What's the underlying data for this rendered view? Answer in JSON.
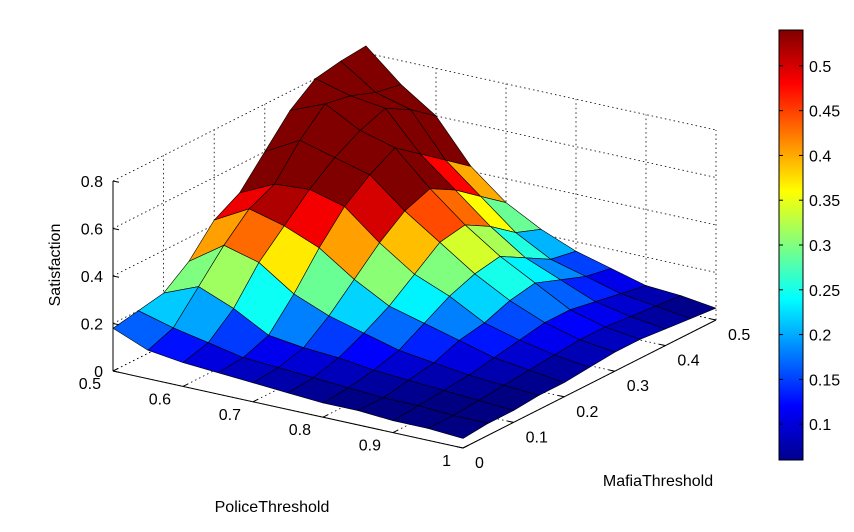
{
  "chart_data": {
    "type": "surface",
    "xlabel": "PoliceThreshold",
    "ylabel": "MafiaThreshold",
    "zlabel": "Satisfaction",
    "xlim": [
      0.5,
      1
    ],
    "ylim": [
      0,
      0.5
    ],
    "zlim": [
      0,
      0.8
    ],
    "x_ticks": [
      "0.5",
      "0.6",
      "0.7",
      "0.8",
      "0.9",
      "1"
    ],
    "y_ticks": [
      "0",
      "0.1",
      "0.2",
      "0.3",
      "0.4",
      "0.5"
    ],
    "z_ticks": [
      "0",
      "0.2",
      "0.4",
      "0.6",
      "0.8"
    ],
    "grid": true,
    "colormap": "jet",
    "colorbar": {
      "range": [
        0.06,
        0.54
      ],
      "ticks": [
        "0.1",
        "0.15",
        "0.2",
        "0.25",
        "0.3",
        "0.35",
        "0.4",
        "0.45",
        "0.5"
      ],
      "placement": "right"
    },
    "x": [
      0.5,
      0.55,
      0.6,
      0.65,
      0.7,
      0.75,
      0.8,
      0.85,
      0.9,
      0.95,
      1.0
    ],
    "y": [
      0.0,
      0.05,
      0.1,
      0.15,
      0.2,
      0.25,
      0.3,
      0.35,
      0.4,
      0.45,
      0.5
    ],
    "z": [
      [
        0.18,
        0.2,
        0.22,
        0.3,
        0.42,
        0.48,
        0.6,
        0.72,
        0.8,
        0.82,
        0.83
      ],
      [
        0.12,
        0.16,
        0.28,
        0.4,
        0.5,
        0.55,
        0.68,
        0.78,
        0.76,
        0.72,
        0.7
      ],
      [
        0.1,
        0.13,
        0.22,
        0.36,
        0.46,
        0.56,
        0.64,
        0.7,
        0.74,
        0.68,
        0.6
      ],
      [
        0.09,
        0.1,
        0.14,
        0.26,
        0.4,
        0.52,
        0.6,
        0.66,
        0.58,
        0.5,
        0.42
      ],
      [
        0.08,
        0.09,
        0.12,
        0.2,
        0.3,
        0.4,
        0.48,
        0.52,
        0.46,
        0.38,
        0.3
      ],
      [
        0.07,
        0.08,
        0.11,
        0.16,
        0.22,
        0.3,
        0.38,
        0.4,
        0.34,
        0.26,
        0.22
      ],
      [
        0.06,
        0.07,
        0.09,
        0.12,
        0.18,
        0.24,
        0.28,
        0.3,
        0.24,
        0.18,
        0.16
      ],
      [
        0.06,
        0.06,
        0.08,
        0.1,
        0.14,
        0.16,
        0.2,
        0.22,
        0.18,
        0.14,
        0.12
      ],
      [
        0.05,
        0.06,
        0.07,
        0.08,
        0.1,
        0.12,
        0.14,
        0.14,
        0.12,
        0.1,
        0.08
      ],
      [
        0.05,
        0.05,
        0.06,
        0.07,
        0.08,
        0.09,
        0.1,
        0.1,
        0.09,
        0.08,
        0.07
      ],
      [
        0.04,
        0.05,
        0.05,
        0.06,
        0.06,
        0.07,
        0.08,
        0.08,
        0.07,
        0.06,
        0.05
      ]
    ]
  }
}
